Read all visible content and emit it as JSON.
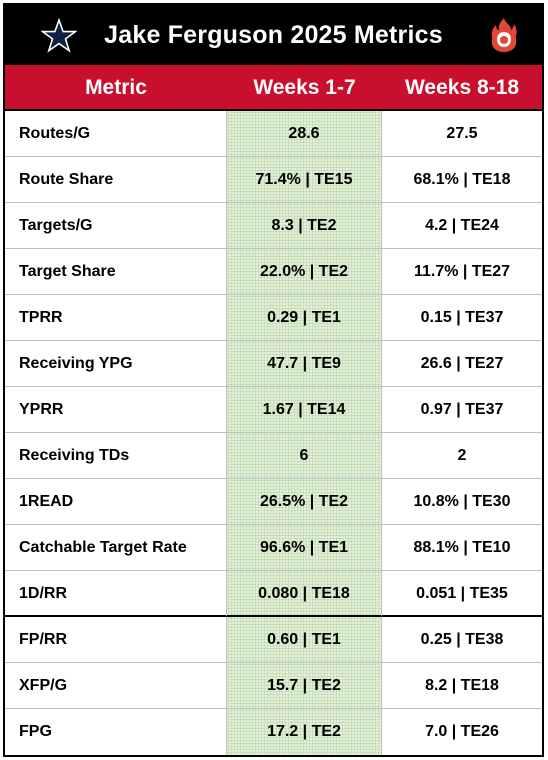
{
  "title": "Jake Ferguson 2025 Metrics",
  "logos": {
    "left": "star-logo",
    "right": "flame-shield-logo"
  },
  "colors": {
    "title_bg": "#000000",
    "header_bg": "#c8102e",
    "highlight_col": "#e2efda",
    "star_blue": "#0a2240"
  },
  "chart_data": {
    "type": "table",
    "columns": [
      "Metric",
      "Weeks 1-7",
      "Weeks 8-18"
    ],
    "rows": [
      [
        "Routes/G",
        "28.6",
        "27.5"
      ],
      [
        "Route Share",
        "71.4% | TE15",
        "68.1% | TE18"
      ],
      [
        "Targets/G",
        "8.3 | TE2",
        "4.2 | TE24"
      ],
      [
        "Target Share",
        "22.0% | TE2",
        "11.7% | TE27"
      ],
      [
        "TPRR",
        "0.29 | TE1",
        "0.15 | TE37"
      ],
      [
        "Receiving YPG",
        "47.7 | TE9",
        "26.6 | TE27"
      ],
      [
        "YPRR",
        "1.67 | TE14",
        "0.97 | TE37"
      ],
      [
        "Receiving TDs",
        "6",
        "2"
      ],
      [
        "1READ",
        "26.5% | TE2",
        "10.8% | TE30"
      ],
      [
        "Catchable Target Rate",
        "96.6% | TE1",
        "88.1% | TE10"
      ],
      [
        "1D/RR",
        "0.080 | TE18",
        "0.051 | TE35"
      ],
      [
        "FP/RR",
        "0.60 | TE1",
        "0.25 | TE38"
      ],
      [
        "XFP/G",
        "15.7 | TE2",
        "8.2 | TE18"
      ],
      [
        "FPG",
        "17.2 | TE2",
        "7.0 | TE26"
      ]
    ]
  }
}
